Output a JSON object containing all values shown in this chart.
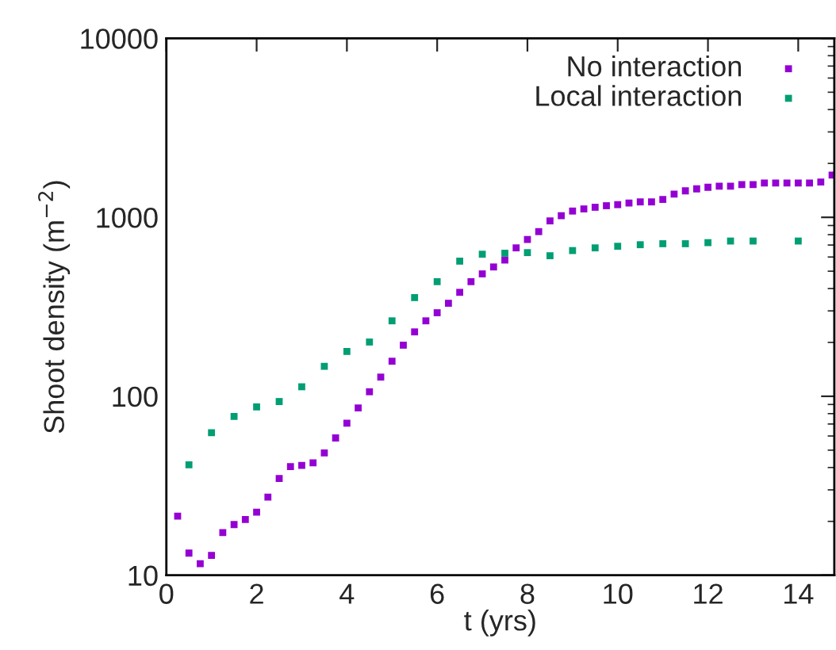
{
  "chart_data": {
    "type": "scatter",
    "xlabel": "t (yrs)",
    "ylabel": "Shoot density (m$^{−2}$)",
    "log": "y",
    "xlim": [
      0,
      14.8
    ],
    "ylim": [
      10,
      10000
    ],
    "xticks": [
      0,
      2,
      4,
      6,
      8,
      10,
      12,
      14
    ],
    "yticks": [
      10,
      100,
      1000,
      10000
    ],
    "marker": "square",
    "legend": "top right",
    "grid": false,
    "series": [
      {
        "name": "No interaction",
        "color": "#9400d3",
        "x": [
          0.25,
          0.5,
          0.75,
          1,
          1.25,
          1.5,
          1.75,
          2,
          2.25,
          2.5,
          2.75,
          3,
          3.25,
          3.5,
          3.75,
          4,
          4.25,
          4.5,
          4.75,
          5,
          5.25,
          5.5,
          5.75,
          6,
          6.25,
          6.5,
          6.75,
          7,
          7.25,
          7.5,
          7.75,
          8,
          8.25,
          8.5,
          8.75,
          9,
          9.25,
          9.5,
          9.75,
          10,
          10.25,
          10.5,
          10.75,
          11,
          11.25,
          11.5,
          11.75,
          12,
          12.25,
          12.5,
          12.75,
          13,
          13.25,
          13.5,
          13.75,
          14,
          14.25,
          14.5,
          14.75
        ],
        "values": [
          21.4,
          13.3,
          11.6,
          12.9,
          17.3,
          19.2,
          20.5,
          22.5,
          27.3,
          34.7,
          40.5,
          41.1,
          42.5,
          48.3,
          58.5,
          70.8,
          86.1,
          106,
          128,
          157,
          193,
          229,
          264,
          293,
          331,
          381,
          437,
          483,
          528,
          577,
          675,
          752,
          832,
          955,
          1021,
          1084,
          1114,
          1138,
          1161,
          1177,
          1202,
          1219,
          1219,
          1259,
          1349,
          1406,
          1442,
          1472,
          1493,
          1493,
          1524,
          1524,
          1556,
          1556,
          1556,
          1556,
          1556,
          1574,
          1722
        ]
      },
      {
        "name": "Local interaction",
        "color": "#009e73",
        "x": [
          0.5,
          1,
          1.5,
          2,
          2.5,
          3,
          3.5,
          4,
          4.5,
          5,
          5.5,
          6,
          6.5,
          7,
          7.5,
          8,
          8.5,
          9,
          9.5,
          10,
          10.5,
          11,
          11.5,
          12,
          12.5,
          13,
          14
        ],
        "values": [
          41.4,
          62.6,
          77.2,
          87.3,
          93.5,
          113,
          147,
          178,
          201,
          264,
          356,
          437,
          569,
          622,
          630,
          635,
          610,
          652,
          675,
          689,
          703,
          712,
          712,
          722,
          737,
          737,
          737
        ]
      }
    ]
  }
}
